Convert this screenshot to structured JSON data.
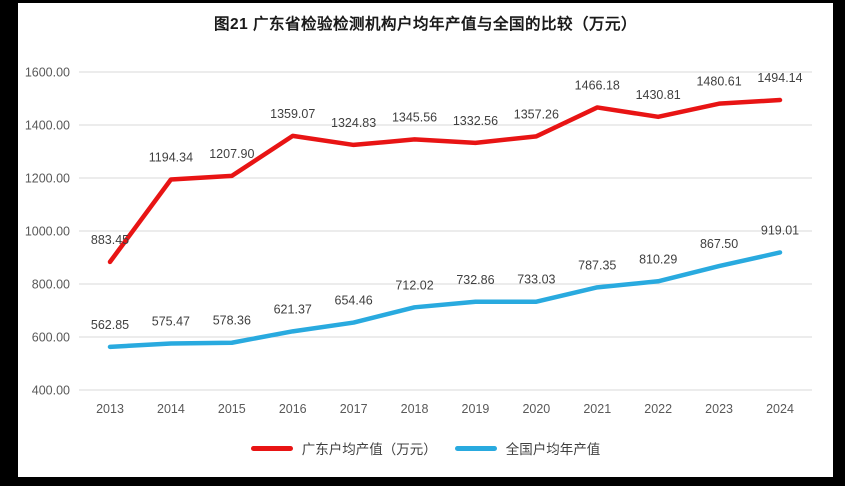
{
  "chart_data": {
    "type": "line",
    "title": "图21  广东省检验检测机构户均年产值与全国的比较（万元）",
    "categories": [
      "2013",
      "2014",
      "2015",
      "2016",
      "2017",
      "2018",
      "2019",
      "2020",
      "2021",
      "2022",
      "2023",
      "2024"
    ],
    "series": [
      {
        "name": "广东户均产值（万元）",
        "color": "#e81414",
        "values": [
          883.45,
          1194.34,
          1207.9,
          1359.07,
          1324.83,
          1345.56,
          1332.56,
          1357.26,
          1466.18,
          1430.81,
          1480.61,
          1494.14
        ]
      },
      {
        "name": "全国户均年产值",
        "color": "#29aadf",
        "values": [
          562.85,
          575.47,
          578.36,
          621.37,
          654.46,
          712.02,
          732.86,
          733.03,
          787.35,
          810.29,
          867.5,
          919.01
        ]
      }
    ],
    "ylim": [
      400,
      1600
    ],
    "ytick_step": 200,
    "ytick_labels": [
      "400.00",
      "600.00",
      "800.00",
      "1000.00",
      "1200.00",
      "1400.00",
      "1600.00"
    ],
    "grid": true,
    "data_labels": true,
    "label_decimals": 2,
    "legend_position": "bottom"
  },
  "colors": {
    "frame": "#000000",
    "background": "#ffffff",
    "grid": "#d9d9d9",
    "axis_text": "#595959",
    "data_label_text": "#404040",
    "title_text": "#1a1a1a"
  }
}
